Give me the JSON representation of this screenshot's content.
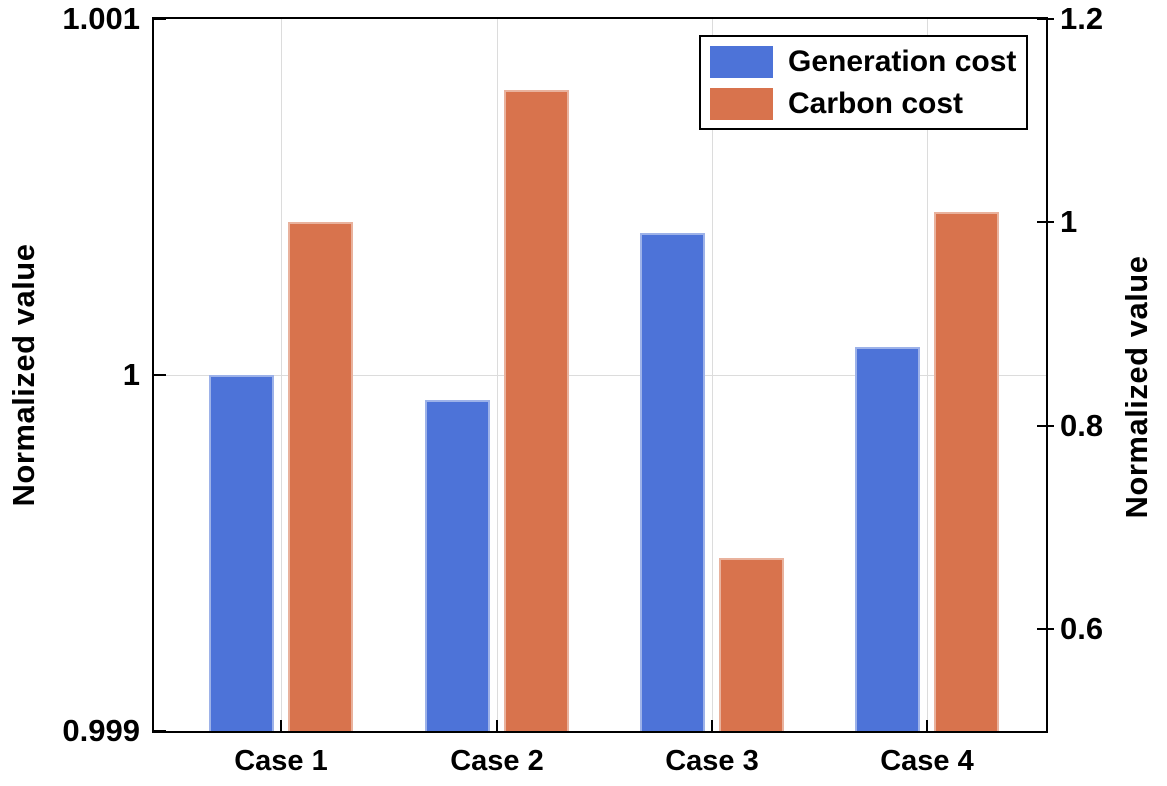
{
  "chart_data": {
    "type": "bar",
    "title": "",
    "categories": [
      "Case 1",
      "Case 2",
      "Case 3",
      "Case 4"
    ],
    "series": [
      {
        "name": "Generation cost",
        "axis": "left",
        "color": "#4d73d8",
        "values": [
          1.0,
          0.99993,
          1.0004,
          1.00008
        ]
      },
      {
        "name": "Carbon cost",
        "axis": "right",
        "color": "#d8734d",
        "values": [
          1.0,
          1.13,
          0.67,
          1.01
        ]
      }
    ],
    "left_axis": {
      "label": "Normalized value",
      "min": 0.999,
      "max": 1.001,
      "ticks": [
        {
          "value": 0.999,
          "label": "0.999"
        },
        {
          "value": 1,
          "label": "1"
        },
        {
          "value": 1.001,
          "label": "1.001"
        }
      ]
    },
    "right_axis": {
      "label": "Normalized value",
      "min": 0.5,
      "max": 1.2,
      "ticks": [
        {
          "value": 0.6,
          "label": "0.6"
        },
        {
          "value": 0.8,
          "label": "0.8"
        },
        {
          "value": 1,
          "label": "1"
        },
        {
          "value": 1.2,
          "label": "1.2"
        }
      ]
    },
    "legend": {
      "position": "top-right",
      "entries": [
        "Generation cost",
        "Carbon cost"
      ]
    },
    "grid": {
      "vertical_at_categories": true,
      "horizontal_at_left_ticks": true
    },
    "styles": {
      "axis_color": "#000000",
      "grid_color": "#dcdcdc",
      "background": "#ffffff"
    }
  }
}
